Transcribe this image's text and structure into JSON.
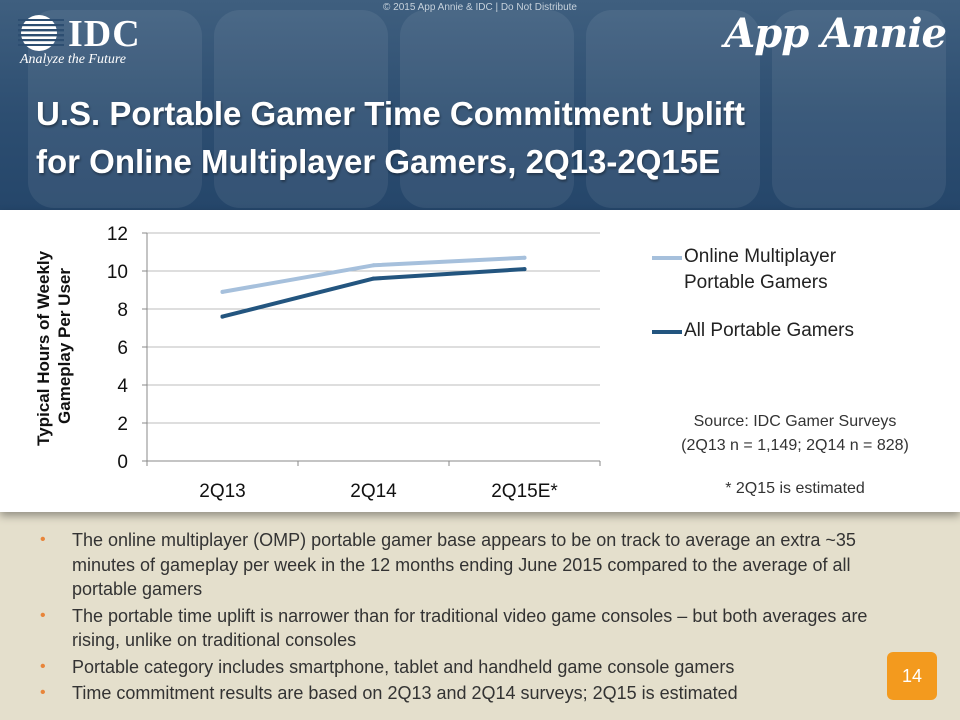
{
  "header": {
    "copyright": "© 2015 App Annie & IDC | Do Not Distribute",
    "idc_logo_text": "IDC",
    "idc_tagline": "Analyze the Future",
    "app_annie_logo_text": "App Annie",
    "title_line1": "U.S. Portable Gamer Time Commitment Uplift",
    "title_line2": "for Online Multiplayer Gamers, 2Q13-2Q15E"
  },
  "chart_data": {
    "type": "line",
    "title": "",
    "xlabel": "",
    "ylabel": "Typical Hours of Weekly Gameplay Per User",
    "ylabel_lines": [
      "Typical Hours of Weekly",
      "Gameplay Per User"
    ],
    "categories": [
      "2Q13",
      "2Q14",
      "2Q15E*"
    ],
    "ylim": [
      0,
      12
    ],
    "yticks": [
      0,
      2,
      4,
      6,
      8,
      10,
      12
    ],
    "grid": true,
    "legend_position": "right",
    "series": [
      {
        "name": "Online Multiplayer Portable Gamers",
        "name_lines": [
          "Online Multiplayer",
          "Portable Gamers"
        ],
        "color": "#a6c0dc",
        "values": [
          8.9,
          10.3,
          10.7
        ]
      },
      {
        "name": "All Portable Gamers",
        "name_lines": [
          "All Portable Gamers"
        ],
        "color": "#23557f",
        "values": [
          7.6,
          9.6,
          10.1
        ]
      }
    ]
  },
  "source_note": {
    "line1": "Source: IDC Gamer Surveys",
    "line2": "(2Q13 n = 1,149; 2Q14 n = 828)",
    "estimate": "* 2Q15 is estimated"
  },
  "bullets": [
    "The online multiplayer (OMP) portable gamer base appears to be on track to average an extra ~35 minutes of gameplay per week in the 12 months ending June 2015 compared to the average of all portable gamers",
    "The portable time uplift is narrower than for traditional video game consoles – but both averages are rising, unlike on traditional consoles",
    "Portable category includes smartphone, tablet and handheld game console gamers",
    "Time commitment results are based on 2Q13 and 2Q14 surveys; 2Q15 is estimated"
  ],
  "bullet_symbol": "•",
  "page_number": "14"
}
